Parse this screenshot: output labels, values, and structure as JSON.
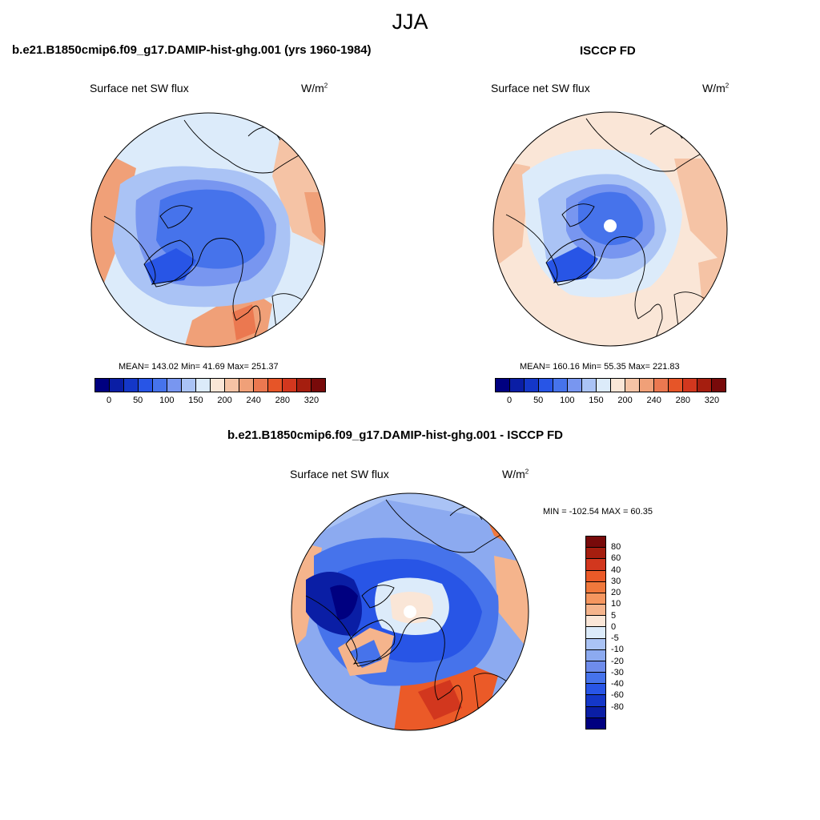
{
  "season": "JJA",
  "panels": [
    {
      "title": "b.e21.B1850cmip6.f09_g17.DAMIP-hist-ghg.001 (yrs 1960-1984)",
      "variable": "Surface net SW flux",
      "unit": "W/m",
      "unit_exp": "2",
      "stats": "MEAN= 143.02  Min=  41.69  Max= 251.37"
    },
    {
      "title": "ISCCP FD",
      "variable": "Surface net SW flux",
      "unit": "W/m",
      "unit_exp": "2",
      "stats": "MEAN= 160.16  Min=  55.35  Max= 221.83"
    },
    {
      "title": "b.e21.B1850cmip6.f09_g17.DAMIP-hist-ghg.001 - ISCCP FD",
      "variable": "Surface net SW flux",
      "unit": "W/m",
      "unit_exp": "2",
      "stats": "MIN = -102.54 MAX =  60.35"
    }
  ],
  "colorbar_abs": {
    "colors": [
      "#000080",
      "#0a1ea5",
      "#1437c8",
      "#2855e6",
      "#4673eb",
      "#7896f0",
      "#aac3f5",
      "#dcebfa",
      "#fae6d7",
      "#f5c3a5",
      "#f0a078",
      "#eb7850",
      "#e65528",
      "#d2371e",
      "#a51e0f",
      "#780a0a"
    ],
    "ticks": [
      "0",
      "50",
      "100",
      "150",
      "200",
      "240",
      "280",
      "320"
    ]
  },
  "colorbar_diff": {
    "colors": [
      "#780a0a",
      "#a51e0f",
      "#d2371e",
      "#eb5a28",
      "#f0783c",
      "#f5965f",
      "#f5b48c",
      "#fae6d7",
      "#dcebfa",
      "#aac3f5",
      "#8caaf0",
      "#6e8ceb",
      "#4673eb",
      "#2855e6",
      "#1437c8",
      "#0a1ea5",
      "#000080"
    ],
    "labels": [
      "80",
      "60",
      "40",
      "30",
      "20",
      "10",
      "5",
      "0",
      "-5",
      "-10",
      "-20",
      "-30",
      "-40",
      "-60",
      "-80"
    ]
  }
}
